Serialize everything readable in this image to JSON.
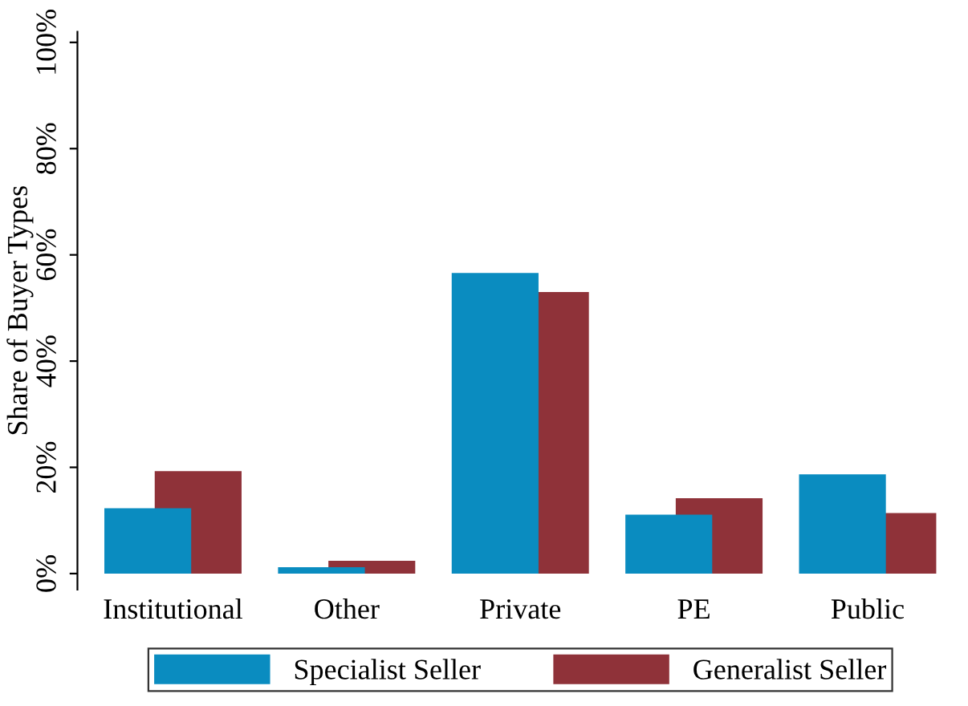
{
  "chart_data": {
    "type": "bar",
    "ylabel": "Share of Buyer Types",
    "categories": [
      "Institutional",
      "Other",
      "Private",
      "PE",
      "Public"
    ],
    "series": [
      {
        "name": "Specialist Seller",
        "color": "#0a8cc0",
        "values": [
          12.3,
          1.2,
          56.6,
          11.1,
          18.7
        ]
      },
      {
        "name": "Generalist Seller",
        "color": "#8f3239",
        "values": [
          19.3,
          2.4,
          53.0,
          14.2,
          11.4
        ]
      }
    ],
    "ylim": [
      -3,
      102
    ],
    "yticks": [
      {
        "value": 0,
        "label": "0%"
      },
      {
        "value": 20,
        "label": "20%"
      },
      {
        "value": 40,
        "label": "40%"
      },
      {
        "value": 60,
        "label": "60%"
      },
      {
        "value": 80,
        "label": "80%"
      },
      {
        "value": 100,
        "label": "100%"
      }
    ],
    "grid": false,
    "legend": "bottom"
  }
}
